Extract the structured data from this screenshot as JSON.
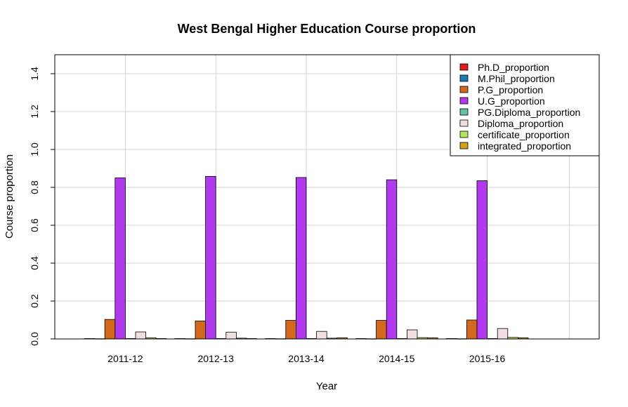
{
  "chart_data": {
    "type": "bar",
    "title": "West Bengal Higher Education Course proportion",
    "xlabel": "Year",
    "ylabel": "Course proportion",
    "ylim": [
      0,
      1.5
    ],
    "yticks": [
      0.0,
      0.2,
      0.4,
      0.6,
      0.8,
      1.0,
      1.2,
      1.4
    ],
    "ytick_labels": [
      "0.0",
      "0.2",
      "0.4",
      "0.6",
      "0.8",
      "1.0",
      "1.2",
      "1.4"
    ],
    "categories": [
      "2011-12",
      "2012-13",
      "2013-14",
      "2014-15",
      "2015-16"
    ],
    "grid": true,
    "legend_position": "top-right",
    "series": [
      {
        "name": "Ph.D_proportion",
        "color": "#e31a1c",
        "values": [
          0.002,
          0.002,
          0.002,
          0.002,
          0.002
        ]
      },
      {
        "name": "M.Phil_proportion",
        "color": "#1f78b4",
        "values": [
          0.001,
          0.001,
          0.001,
          0.001,
          0.001
        ]
      },
      {
        "name": "P.G_proportion",
        "color": "#d2691e",
        "values": [
          0.103,
          0.095,
          0.098,
          0.098,
          0.1
        ]
      },
      {
        "name": "U.G_proportion",
        "color": "#b23aee",
        "values": [
          0.85,
          0.858,
          0.852,
          0.84,
          0.835
        ]
      },
      {
        "name": "PG.Diploma_proportion",
        "color": "#66c2a5",
        "values": [
          0.002,
          0.002,
          0.002,
          0.002,
          0.002
        ]
      },
      {
        "name": "Diploma_proportion",
        "color": "#f2dede",
        "values": [
          0.037,
          0.036,
          0.04,
          0.048,
          0.055
        ]
      },
      {
        "name": "certificate_proportion",
        "color": "#b3e65c",
        "values": [
          0.006,
          0.004,
          0.004,
          0.007,
          0.008
        ]
      },
      {
        "name": "integrated_proportion",
        "color": "#d4a017",
        "values": [
          0.002,
          0.002,
          0.006,
          0.006,
          0.006
        ]
      }
    ]
  }
}
